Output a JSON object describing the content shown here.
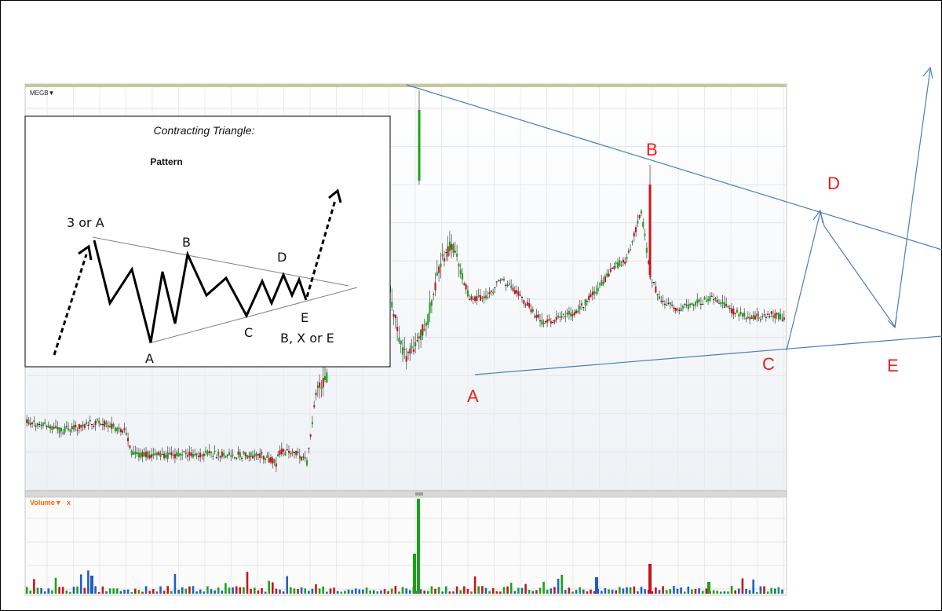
{
  "chart_data": {
    "type": "candlestick",
    "ticker": "MEGB▼",
    "volume_label": "Volume▼",
    "volume_close": "x",
    "colors": {
      "up": "#19a319",
      "down": "#c4161c",
      "flat": "#222222",
      "volume_blue": "#1f5fc4",
      "trendline": "#4a7ebb",
      "wave_label": "#e8201a"
    },
    "wave_labels": [
      "A",
      "B",
      "C",
      "D",
      "E"
    ],
    "inset": {
      "title": "Contracting Triangle:",
      "subtitle": "Pattern",
      "labels": [
        "3 or A",
        "A",
        "B",
        "C",
        "D",
        "E",
        "B, X or E"
      ]
    }
  }
}
